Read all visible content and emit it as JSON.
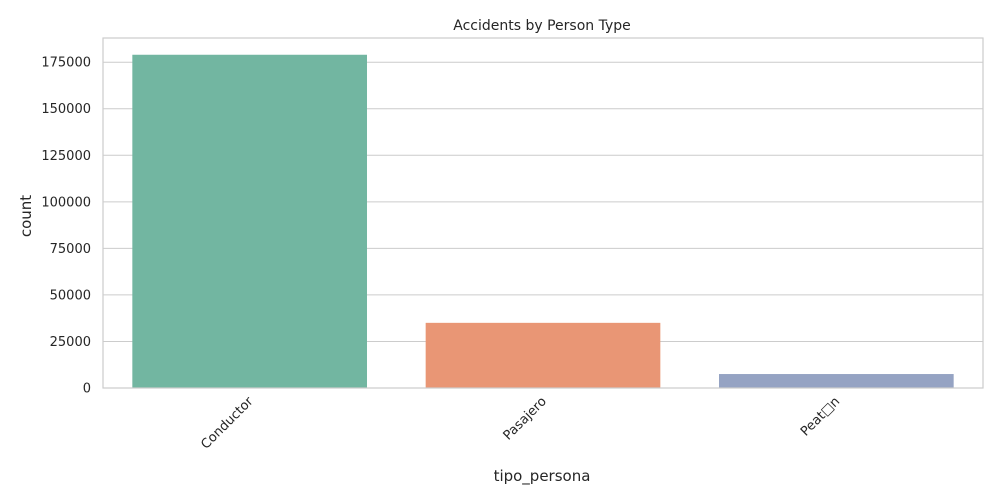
{
  "chart_data": {
    "type": "bar",
    "title": "Accidents by Person Type",
    "xlabel": "tipo_persona",
    "ylabel": "count",
    "categories": [
      "Conductor",
      "Pasajero",
      "Peat□n"
    ],
    "values": [
      179000,
      35000,
      7500
    ],
    "colors": [
      "#72b6a1",
      "#e99675",
      "#95a3c3"
    ],
    "yticks": [
      0,
      25000,
      50000,
      75000,
      100000,
      125000,
      150000,
      175000
    ],
    "ylim": [
      0,
      188000
    ],
    "grid": true,
    "legend": "none"
  }
}
